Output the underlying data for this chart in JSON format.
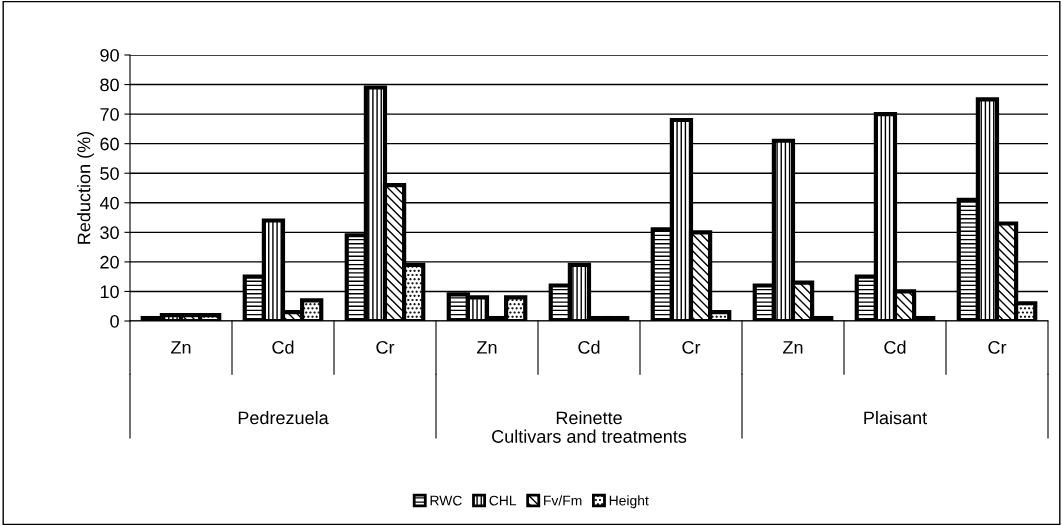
{
  "chart_data": {
    "type": "bar",
    "ylabel": "Reduction (%)",
    "categories": [
      "Zn",
      "Cd",
      "Cr",
      "Zn",
      "Cd",
      "Cr",
      "Zn",
      "Cd",
      "Cr"
    ],
    "annotations": [
      "Pedrezuela",
      "Reinette",
      "Plaisant",
      "Cultivars and treatments"
    ],
    "series": [
      {
        "name": "RWC",
        "color": "#000000",
        "values": [
          1,
          15,
          29,
          9,
          12,
          31,
          12,
          15,
          41
        ]
      },
      {
        "name": "CHL",
        "color": "#000000",
        "values": [
          2,
          34,
          79,
          8,
          19,
          68,
          61,
          70,
          75
        ]
      },
      {
        "name": "Fv/Fm",
        "color": "#000000",
        "values": [
          2,
          3,
          46,
          1,
          1,
          30,
          13,
          10,
          33
        ]
      },
      {
        "name": "Height",
        "color": "#000000",
        "values": [
          2,
          7,
          19,
          8,
          1,
          3,
          1,
          1,
          6
        ]
      }
    ],
    "ylim": [
      0,
      90
    ],
    "yticks": [
      0,
      10,
      20,
      30,
      40,
      50,
      60,
      70,
      80,
      90
    ],
    "grid": "y",
    "legend": "bottom"
  }
}
